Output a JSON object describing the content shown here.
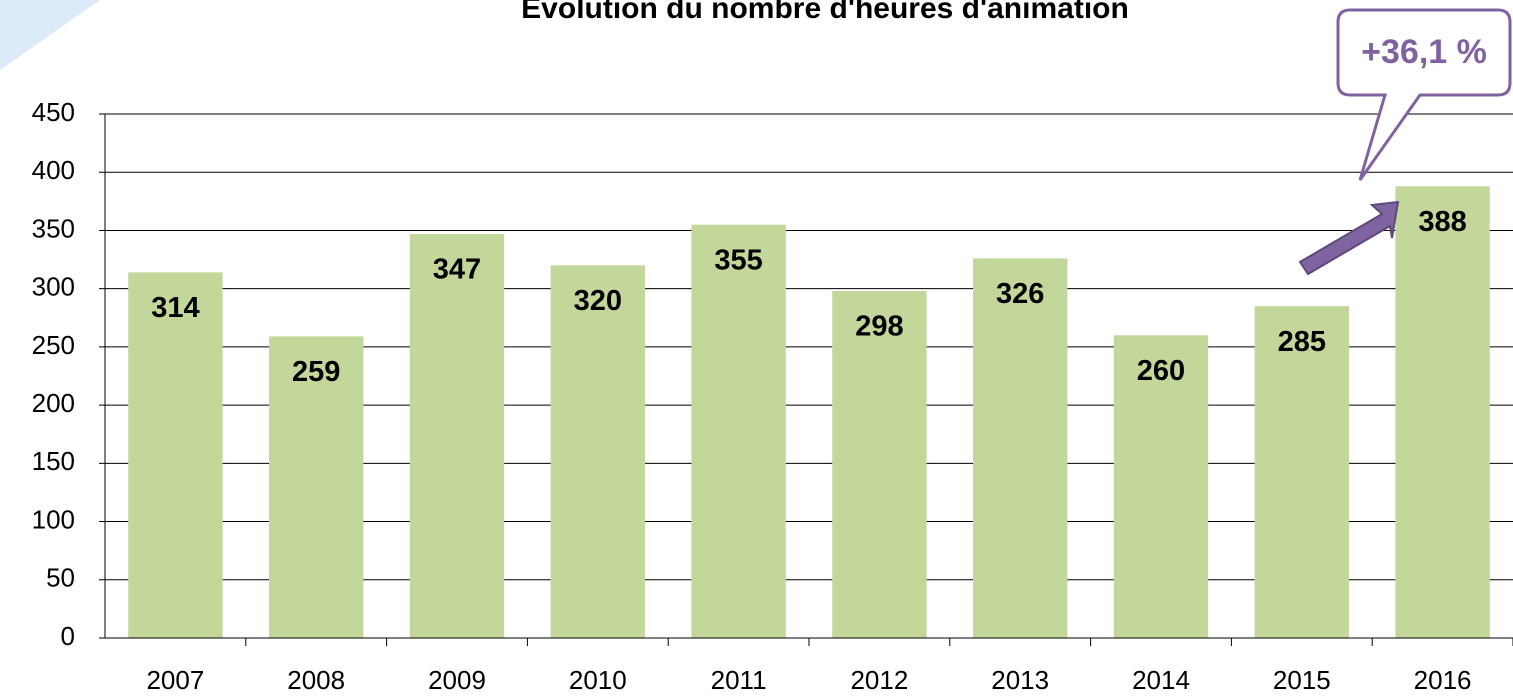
{
  "chart_data": {
    "type": "bar",
    "title": "Évolution du nombre d'heures d'animation",
    "annotation": "+36,1 %",
    "categories": [
      "2007",
      "2008",
      "2009",
      "2010",
      "2011",
      "2012",
      "2013",
      "2014",
      "2015",
      "2016"
    ],
    "values": [
      314,
      259,
      347,
      320,
      355,
      298,
      326,
      260,
      285,
      388
    ],
    "color": "#c4d79b",
    "ylim": [
      0,
      450
    ],
    "yticks": [
      0,
      50,
      100,
      150,
      200,
      250,
      300,
      350,
      400,
      450
    ],
    "grid": true
  }
}
